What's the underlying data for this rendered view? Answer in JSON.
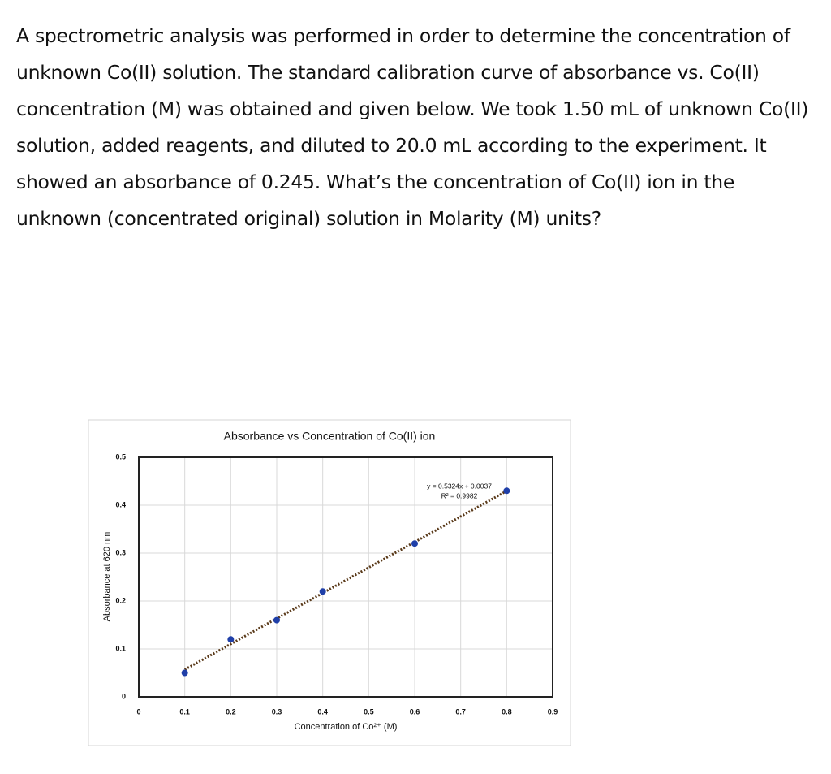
{
  "question": "A spectrometric analysis was performed in order to determine the concentration of unknown Co(II) solution. The standard calibration curve of absorbance vs. Co(II) concentration (M) was obtained and given below. We took 1.50 mL of unknown Co(II) solution, added reagents, and diluted to 20.0 mL according to the experiment. It showed an absorbance of 0.245. What’s the concentration of Co(II) ion in the unknown (concentrated original) solution in Molarity (M) units?",
  "chart_data": {
    "type": "scatter",
    "title": "Absorbance vs Concentration of Co(II) ion",
    "x_label": "Concentration of Co²⁺ (M)",
    "y_label": "Absorbance at 620 nm",
    "x": [
      0.1,
      0.2,
      0.3,
      0.4,
      0.6,
      0.8
    ],
    "values": [
      0.05,
      0.12,
      0.16,
      0.22,
      0.32,
      0.43
    ],
    "color": "#1f3fa8",
    "trendline": true,
    "annotations": [
      "y = 0.5324x + 0.0037",
      "R² = 0.9982"
    ],
    "xlim": [
      0,
      0.9
    ],
    "xticks": [
      0,
      0.1,
      0.2,
      0.3,
      0.4,
      0.5,
      0.6,
      0.7,
      0.8,
      0.9
    ],
    "ylim": [
      0,
      0.5
    ],
    "yticks": [
      0,
      0.1,
      0.2,
      0.3,
      0.4,
      0.5
    ],
    "grid": true
  }
}
